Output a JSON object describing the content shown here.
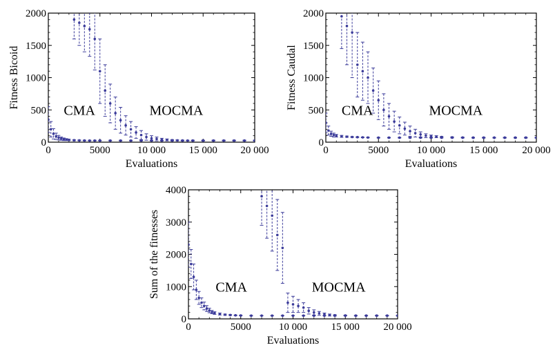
{
  "chart_data": [
    {
      "type": "scatter",
      "xlabel": "Evaluations",
      "ylabel": "Fitness Bicoid",
      "xlim": [
        0,
        20000
      ],
      "ylim": [
        0,
        2000
      ],
      "xticks": [
        0,
        5000,
        10000,
        15000,
        20000
      ],
      "xtick_labels": [
        "0",
        "5000",
        "10 000",
        "15 000",
        "20 000"
      ],
      "yticks": [
        0,
        500,
        1000,
        1500,
        2000
      ],
      "ytick_labels": [
        "0",
        "500",
        "1000",
        "1500",
        "2000"
      ],
      "annotations": [
        {
          "text": "CMA",
          "x": 1500,
          "y": 500
        },
        {
          "text": "MOCMA",
          "x": 9800,
          "y": 500
        }
      ],
      "series": [
        {
          "x": [
            0,
            250,
            500,
            750,
            1000,
            1250,
            1500,
            1750,
            2000,
            2500,
            3000,
            3500,
            4000,
            4500,
            5000,
            6000,
            7000,
            8000,
            9000,
            10000,
            11000,
            12000,
            13000,
            14000,
            15000,
            16000,
            17000,
            18000,
            19000,
            20000
          ],
          "y": [
            350,
            200,
            130,
            90,
            70,
            55,
            45,
            40,
            35,
            30,
            28,
            26,
            25,
            25,
            25,
            25,
            25,
            25,
            25,
            25,
            25,
            25,
            25,
            25,
            25,
            25,
            25,
            25,
            25,
            25
          ],
          "err": [
            200,
            120,
            80,
            50,
            35,
            25,
            20,
            15,
            10,
            8,
            6,
            5,
            5,
            5,
            5,
            5,
            5,
            5,
            5,
            5,
            5,
            5,
            5,
            5,
            5,
            5,
            5,
            5,
            5,
            5
          ]
        },
        {
          "x": [
            2500,
            3000,
            3500,
            4000,
            4500,
            5000,
            5500,
            6000,
            6500,
            7000,
            7500,
            8000,
            8500,
            9000,
            9500,
            10000,
            10500,
            11000,
            11500,
            12000,
            12500,
            13000,
            13500,
            14000,
            15000,
            16000,
            17000,
            18000,
            19000,
            20000
          ],
          "y": [
            1900,
            1850,
            1800,
            1750,
            1600,
            1100,
            800,
            600,
            450,
            340,
            260,
            200,
            150,
            110,
            80,
            60,
            50,
            40,
            35,
            30,
            28,
            26,
            25,
            25,
            25,
            25,
            25,
            25,
            25,
            25
          ],
          "err": [
            300,
            350,
            400,
            420,
            480,
            500,
            400,
            300,
            250,
            200,
            150,
            120,
            90,
            70,
            50,
            40,
            30,
            20,
            15,
            10,
            8,
            6,
            5,
            5,
            5,
            5,
            5,
            5,
            5,
            5
          ]
        }
      ]
    },
    {
      "type": "scatter",
      "xlabel": "Evaluations",
      "ylabel": "Fitness Caudal",
      "xlim": [
        0,
        20000
      ],
      "ylim": [
        0,
        2000
      ],
      "xticks": [
        0,
        5000,
        10000,
        15000,
        20000
      ],
      "xtick_labels": [
        "0",
        "5000",
        "10 000",
        "15 000",
        "20 000"
      ],
      "yticks": [
        0,
        500,
        1000,
        1500,
        2000
      ],
      "ytick_labels": [
        "0",
        "500",
        "1000",
        "1500",
        "2000"
      ],
      "annotations": [
        {
          "text": "CMA",
          "x": 1500,
          "y": 500
        },
        {
          "text": "MOCMA",
          "x": 9800,
          "y": 500
        }
      ],
      "series": [
        {
          "x": [
            0,
            250,
            500,
            750,
            1000,
            1500,
            2000,
            2500,
            3000,
            3500,
            4000,
            5000,
            6000,
            7000,
            8000,
            9000,
            10000,
            11000,
            12000,
            13000,
            14000,
            15000,
            16000,
            17000,
            18000,
            19000,
            20000
          ],
          "y": [
            300,
            180,
            130,
            110,
            100,
            90,
            85,
            80,
            78,
            75,
            72,
            70,
            70,
            70,
            70,
            70,
            70,
            70,
            70,
            70,
            70,
            70,
            70,
            70,
            70,
            70,
            70
          ],
          "err": [
            150,
            70,
            40,
            30,
            20,
            15,
            10,
            8,
            6,
            5,
            5,
            5,
            5,
            5,
            5,
            5,
            5,
            5,
            5,
            5,
            5,
            5,
            5,
            5,
            5,
            5,
            5
          ]
        },
        {
          "x": [
            1500,
            2000,
            2500,
            3000,
            3500,
            4000,
            4500,
            5000,
            5500,
            6000,
            6500,
            7000,
            7500,
            8000,
            8500,
            9000,
            9500,
            10000,
            10500,
            11000,
            12000,
            13000,
            14000,
            15000,
            16000,
            17000,
            18000,
            19000,
            20000
          ],
          "y": [
            1950,
            1800,
            1700,
            1200,
            1100,
            1000,
            800,
            650,
            500,
            400,
            320,
            260,
            210,
            170,
            140,
            120,
            100,
            90,
            85,
            80,
            75,
            72,
            70,
            70,
            70,
            70,
            70,
            70,
            70
          ],
          "err": [
            500,
            600,
            700,
            500,
            450,
            400,
            350,
            300,
            250,
            200,
            160,
            130,
            100,
            80,
            60,
            40,
            30,
            20,
            15,
            10,
            8,
            6,
            5,
            5,
            5,
            5,
            5,
            5,
            5
          ]
        }
      ]
    },
    {
      "type": "scatter",
      "xlabel": "Evaluations",
      "ylabel": "Sum of the fitnesses",
      "xlim": [
        0,
        20000
      ],
      "ylim": [
        0,
        4000
      ],
      "xticks": [
        0,
        5000,
        10000,
        15000,
        20000
      ],
      "xtick_labels": [
        "0",
        "5000",
        "10 000",
        "15 000",
        "20 000"
      ],
      "yticks": [
        0,
        1000,
        2000,
        3000,
        4000
      ],
      "ytick_labels": [
        "0",
        "1000",
        "2000",
        "3000",
        "4000"
      ],
      "annotations": [
        {
          "text": "CMA",
          "x": 2600,
          "y": 1000
        },
        {
          "text": "MOCMA",
          "x": 11800,
          "y": 1000
        }
      ],
      "series": [
        {
          "x": [
            0,
            250,
            500,
            750,
            1000,
            1250,
            1500,
            1750,
            2000,
            2250,
            2500,
            3000,
            3500,
            4000,
            4500,
            5000,
            6000,
            7000,
            8000,
            9000,
            10000,
            11000,
            12000,
            13000,
            14000,
            15000,
            16000,
            17000,
            18000,
            19000,
            20000
          ],
          "y": [
            2300,
            1700,
            1300,
            900,
            650,
            500,
            400,
            320,
            260,
            210,
            180,
            150,
            130,
            120,
            110,
            105,
            100,
            100,
            100,
            100,
            100,
            100,
            100,
            100,
            100,
            100,
            100,
            100,
            100,
            100,
            100
          ],
          "err": [
            700,
            450,
            400,
            300,
            200,
            150,
            120,
            90,
            70,
            50,
            40,
            30,
            20,
            15,
            10,
            10,
            8,
            5,
            5,
            5,
            5,
            5,
            5,
            5,
            5,
            5,
            5,
            5,
            5,
            5,
            5
          ]
        },
        {
          "x": [
            7000,
            7500,
            8000,
            8500,
            9000,
            9500,
            10000,
            10500,
            11000,
            11500,
            12000,
            12500,
            13000,
            13500,
            14000,
            15000,
            16000,
            17000,
            18000,
            19000,
            20000
          ],
          "y": [
            3800,
            3500,
            3200,
            2600,
            2200,
            500,
            450,
            400,
            350,
            250,
            200,
            170,
            140,
            120,
            110,
            105,
            100,
            100,
            100,
            100,
            100
          ],
          "err": [
            900,
            1000,
            1100,
            1100,
            1100,
            300,
            250,
            200,
            150,
            100,
            80,
            60,
            40,
            30,
            20,
            10,
            8,
            5,
            5,
            5,
            5
          ]
        }
      ]
    }
  ]
}
